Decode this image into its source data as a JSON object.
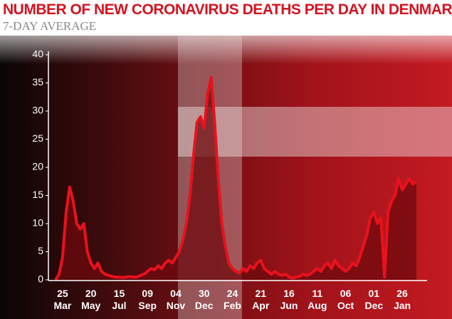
{
  "chart_data": {
    "type": "line",
    "title": "NUMBER OF NEW CORONAVIRUS DEATHS PER DAY IN DENMARK",
    "subtitle": "7-DAY AVERAGE",
    "color": "#e8121c",
    "ylim": [
      0,
      40
    ],
    "yticks": [
      0,
      5,
      10,
      15,
      20,
      25,
      30,
      35,
      40
    ],
    "categories": [
      null,
      null,
      "25 Mar",
      null,
      null,
      null,
      null,
      null,
      null,
      null,
      "20 May",
      null,
      null,
      null,
      null,
      null,
      null,
      null,
      "15 Jul",
      null,
      null,
      null,
      null,
      null,
      null,
      null,
      "09 Sep",
      null,
      null,
      null,
      null,
      null,
      null,
      null,
      "04 Nov",
      null,
      null,
      null,
      null,
      null,
      null,
      null,
      "30 Dec",
      null,
      null,
      null,
      null,
      null,
      null,
      null,
      "24 Feb",
      null,
      null,
      null,
      null,
      null,
      null,
      null,
      "21 Apr",
      null,
      null,
      null,
      null,
      null,
      null,
      null,
      "16 Jun",
      null,
      null,
      null,
      null,
      null,
      null,
      null,
      "11 Aug",
      null,
      null,
      null,
      null,
      null,
      null,
      null,
      "06 Oct",
      null,
      null,
      null,
      null,
      null,
      null,
      null,
      "01 Dec",
      null,
      null,
      null,
      null,
      null,
      null,
      null,
      "26 Jan",
      null,
      null,
      null,
      null
    ],
    "values": [
      0,
      1,
      4,
      12,
      16.5,
      14,
      10,
      9,
      10,
      5,
      3,
      2,
      3,
      1.5,
      1,
      0.8,
      0.6,
      0.5,
      0.5,
      0.4,
      0.5,
      0.6,
      0.5,
      0.5,
      0.8,
      1,
      1.5,
      2,
      1.8,
      2.5,
      2,
      3,
      3.5,
      3,
      4,
      5,
      7,
      10,
      15,
      22,
      28,
      29,
      27,
      33,
      36,
      28,
      18,
      10,
      6,
      3,
      2,
      1.5,
      1.2,
      2,
      1.5,
      2.5,
      2,
      3,
      3.5,
      2,
      1.5,
      1,
      1.5,
      1,
      0.8,
      1,
      0.5,
      0.3,
      0.5,
      0.6,
      1,
      0.8,
      1,
      1.5,
      2,
      1.5,
      2.5,
      3,
      2,
      3.5,
      2.5,
      2,
      1.5,
      2,
      3,
      2.5,
      4,
      6,
      8,
      11,
      12,
      10,
      11,
      0.5,
      12,
      14,
      15,
      18,
      16,
      17,
      18,
      17,
      17.5
    ]
  }
}
